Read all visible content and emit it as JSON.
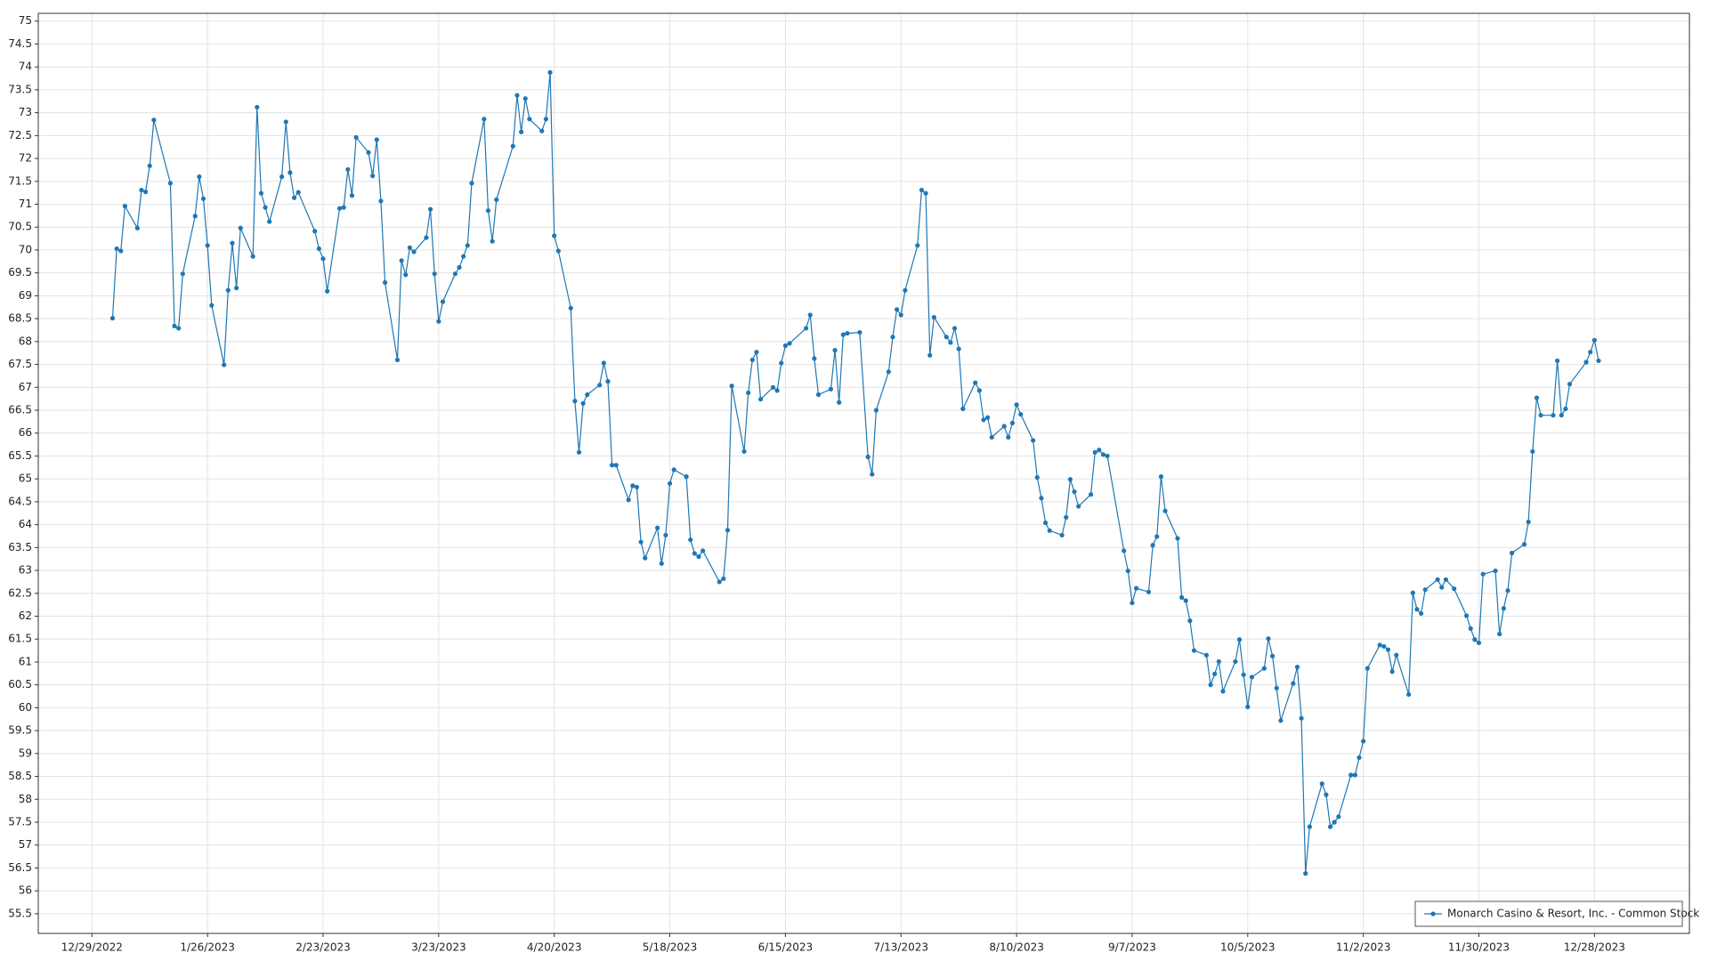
{
  "chart_data": {
    "type": "line",
    "grid": true,
    "legend": "lower right",
    "xlim": [
      "12/16/2022",
      "1/20/2024"
    ],
    "ylim": [
      55.07,
      75.17
    ],
    "xticks": [
      "12/29/2022",
      "1/26/2023",
      "2/23/2023",
      "3/23/2023",
      "4/20/2023",
      "5/18/2023",
      "6/15/2023",
      "7/13/2023",
      "8/10/2023",
      "9/7/2023",
      "10/5/2023",
      "11/2/2023",
      "11/30/2023",
      "12/28/2023"
    ],
    "yticks": [
      55.5,
      56,
      56.5,
      57,
      57.5,
      58,
      58.5,
      59,
      59.5,
      60,
      60.5,
      61,
      61.5,
      62,
      62.5,
      63,
      63.5,
      64,
      64.5,
      65,
      65.5,
      66,
      66.5,
      67,
      67.5,
      68,
      68.5,
      69,
      69.5,
      70,
      70.5,
      71,
      71.5,
      72,
      72.5,
      73,
      73.5,
      74,
      74.5,
      75
    ],
    "x": [
      "1/3/2023",
      "1/4/2023",
      "1/5/2023",
      "1/6/2023",
      "1/9/2023",
      "1/10/2023",
      "1/11/2023",
      "1/12/2023",
      "1/13/2023",
      "1/17/2023",
      "1/18/2023",
      "1/19/2023",
      "1/20/2023",
      "1/23/2023",
      "1/24/2023",
      "1/25/2023",
      "1/26/2023",
      "1/27/2023",
      "1/30/2023",
      "1/31/2023",
      "2/1/2023",
      "2/2/2023",
      "2/3/2023",
      "2/6/2023",
      "2/7/2023",
      "2/8/2023",
      "2/9/2023",
      "2/10/2023",
      "2/13/2023",
      "2/14/2023",
      "2/15/2023",
      "2/16/2023",
      "2/17/2023",
      "2/21/2023",
      "2/22/2023",
      "2/23/2023",
      "2/24/2023",
      "2/27/2023",
      "2/28/2023",
      "3/1/2023",
      "3/2/2023",
      "3/3/2023",
      "3/6/2023",
      "3/7/2023",
      "3/8/2023",
      "3/9/2023",
      "3/10/2023",
      "3/13/2023",
      "3/14/2023",
      "3/15/2023",
      "3/16/2023",
      "3/17/2023",
      "3/20/2023",
      "3/21/2023",
      "3/22/2023",
      "3/23/2023",
      "3/24/2023",
      "3/27/2023",
      "3/28/2023",
      "3/29/2023",
      "3/30/2023",
      "3/31/2023",
      "4/3/2023",
      "4/4/2023",
      "4/5/2023",
      "4/6/2023",
      "4/10/2023",
      "4/11/2023",
      "4/12/2023",
      "4/13/2023",
      "4/14/2023",
      "4/17/2023",
      "4/18/2023",
      "4/19/2023",
      "4/20/2023",
      "4/21/2023",
      "4/24/2023",
      "4/25/2023",
      "4/26/2023",
      "4/27/2023",
      "4/28/2023",
      "5/1/2023",
      "5/2/2023",
      "5/3/2023",
      "5/4/2023",
      "5/5/2023",
      "5/8/2023",
      "5/9/2023",
      "5/10/2023",
      "5/11/2023",
      "5/12/2023",
      "5/15/2023",
      "5/16/2023",
      "5/17/2023",
      "5/18/2023",
      "5/19/2023",
      "5/22/2023",
      "5/23/2023",
      "5/24/2023",
      "5/25/2023",
      "5/26/2023",
      "5/30/2023",
      "5/31/2023",
      "6/1/2023",
      "6/2/2023",
      "6/5/2023",
      "6/6/2023",
      "6/7/2023",
      "6/8/2023",
      "6/9/2023",
      "6/12/2023",
      "6/13/2023",
      "6/14/2023",
      "6/15/2023",
      "6/16/2023",
      "6/20/2023",
      "6/21/2023",
      "6/22/2023",
      "6/23/2023",
      "6/26/2023",
      "6/27/2023",
      "6/28/2023",
      "6/29/2023",
      "6/30/2023",
      "7/3/2023",
      "7/5/2023",
      "7/6/2023",
      "7/7/2023",
      "7/10/2023",
      "7/11/2023",
      "7/12/2023",
      "7/13/2023",
      "7/14/2023",
      "7/17/2023",
      "7/18/2023",
      "7/19/2023",
      "7/20/2023",
      "7/21/2023",
      "7/24/2023",
      "7/25/2023",
      "7/26/2023",
      "7/27/2023",
      "7/28/2023",
      "7/31/2023",
      "8/1/2023",
      "8/2/2023",
      "8/3/2023",
      "8/4/2023",
      "8/7/2023",
      "8/8/2023",
      "8/9/2023",
      "8/10/2023",
      "8/11/2023",
      "8/14/2023",
      "8/15/2023",
      "8/16/2023",
      "8/17/2023",
      "8/18/2023",
      "8/21/2023",
      "8/22/2023",
      "8/23/2023",
      "8/24/2023",
      "8/25/2023",
      "8/28/2023",
      "8/29/2023",
      "8/30/2023",
      "8/31/2023",
      "9/1/2023",
      "9/5/2023",
      "9/6/2023",
      "9/7/2023",
      "9/8/2023",
      "9/11/2023",
      "9/12/2023",
      "9/13/2023",
      "9/14/2023",
      "9/15/2023",
      "9/18/2023",
      "9/19/2023",
      "9/20/2023",
      "9/21/2023",
      "9/22/2023",
      "9/25/2023",
      "9/26/2023",
      "9/27/2023",
      "9/28/2023",
      "9/29/2023",
      "10/2/2023",
      "10/3/2023",
      "10/4/2023",
      "10/5/2023",
      "10/6/2023",
      "10/9/2023",
      "10/10/2023",
      "10/11/2023",
      "10/12/2023",
      "10/13/2023",
      "10/16/2023",
      "10/17/2023",
      "10/18/2023",
      "10/19/2023",
      "10/20/2023",
      "10/23/2023",
      "10/24/2023",
      "10/25/2023",
      "10/26/2023",
      "10/27/2023",
      "10/30/2023",
      "10/31/2023",
      "11/1/2023",
      "11/2/2023",
      "11/3/2023",
      "11/6/2023",
      "11/7/2023",
      "11/8/2023",
      "11/9/2023",
      "11/10/2023",
      "11/13/2023",
      "11/14/2023",
      "11/15/2023",
      "11/16/2023",
      "11/17/2023",
      "11/20/2023",
      "11/21/2023",
      "11/22/2023",
      "11/24/2023",
      "11/27/2023",
      "11/28/2023",
      "11/29/2023",
      "11/30/2023",
      "12/1/2023",
      "12/4/2023",
      "12/5/2023",
      "12/6/2023",
      "12/7/2023",
      "12/8/2023",
      "12/11/2023",
      "12/12/2023",
      "12/13/2023",
      "12/14/2023",
      "12/15/2023",
      "12/18/2023",
      "12/19/2023",
      "12/20/2023",
      "12/21/2023",
      "12/22/2023",
      "12/26/2023",
      "12/27/2023",
      "12/28/2023",
      "12/29/2023"
    ],
    "series": [
      {
        "name": "Monarch Casino & Resort, Inc. - Common Stock",
        "color": "#1f77b4",
        "values": [
          68.51,
          70.03,
          69.98,
          70.96,
          70.48,
          71.31,
          71.27,
          71.84,
          72.84,
          71.46,
          68.34,
          68.29,
          69.48,
          70.74,
          71.6,
          71.12,
          70.1,
          68.79,
          67.49,
          69.12,
          70.15,
          69.17,
          70.48,
          69.86,
          73.12,
          71.24,
          70.93,
          70.62,
          71.6,
          72.8,
          71.69,
          71.14,
          71.26,
          70.41,
          70.03,
          69.81,
          69.1,
          70.91,
          70.93,
          71.76,
          71.19,
          72.46,
          72.13,
          71.62,
          72.41,
          71.07,
          69.29,
          67.6,
          69.77,
          69.46,
          70.05,
          69.96,
          70.27,
          70.89,
          69.48,
          68.44,
          68.87,
          69.48,
          69.62,
          69.86,
          70.1,
          71.46,
          72.86,
          70.86,
          70.19,
          71.1,
          72.27,
          73.38,
          72.58,
          73.31,
          72.86,
          72.6,
          72.86,
          73.88,
          70.31,
          69.98,
          68.73,
          66.7,
          65.58,
          66.65,
          66.84,
          67.05,
          67.53,
          67.13,
          65.3,
          65.3,
          64.54,
          64.85,
          64.82,
          63.62,
          63.27,
          63.93,
          63.15,
          63.77,
          64.9,
          65.2,
          65.05,
          63.67,
          63.37,
          63.3,
          63.43,
          62.75,
          62.82,
          63.88,
          67.03,
          65.6,
          66.88,
          67.6,
          67.77,
          66.74,
          67.0,
          66.93,
          67.53,
          67.91,
          67.96,
          68.29,
          68.58,
          67.63,
          66.84,
          66.96,
          67.81,
          66.67,
          68.15,
          68.18,
          68.2,
          65.48,
          65.1,
          66.5,
          67.34,
          68.1,
          68.7,
          68.58,
          69.12,
          70.1,
          71.31,
          71.24,
          67.7,
          68.53,
          68.1,
          67.98,
          68.29,
          67.84,
          66.53,
          67.1,
          66.93,
          66.29,
          66.34,
          65.91,
          66.15,
          65.91,
          66.22,
          66.62,
          66.41,
          65.84,
          65.03,
          64.58,
          64.04,
          63.87,
          63.77,
          64.16,
          64.99,
          64.72,
          64.4,
          64.66,
          65.58,
          65.63,
          65.53,
          65.5,
          63.43,
          62.99,
          62.29,
          62.61,
          62.53,
          63.55,
          63.74,
          65.05,
          64.3,
          63.7,
          62.41,
          62.34,
          61.9,
          61.25,
          61.15,
          60.5,
          60.74,
          61.01,
          60.36,
          61.01,
          61.49,
          60.72,
          60.02,
          60.67,
          60.86,
          61.51,
          61.13,
          60.43,
          59.72,
          60.53,
          60.89,
          59.77,
          56.38,
          57.4,
          58.34,
          58.1,
          57.4,
          57.5,
          57.62,
          58.53,
          58.53,
          58.91,
          59.27,
          60.86,
          61.37,
          61.34,
          61.27,
          60.79,
          61.15,
          60.29,
          62.51,
          62.15,
          62.06,
          62.58,
          62.8,
          62.63,
          62.8,
          62.6,
          62.01,
          61.73,
          61.49,
          61.42,
          62.92,
          62.99,
          61.61,
          62.17,
          62.56,
          63.38,
          63.57,
          64.06,
          65.6,
          66.77,
          66.39,
          66.39,
          67.58,
          66.39,
          66.53,
          67.07,
          67.55,
          67.77,
          68.03,
          67.58
        ]
      }
    ]
  }
}
